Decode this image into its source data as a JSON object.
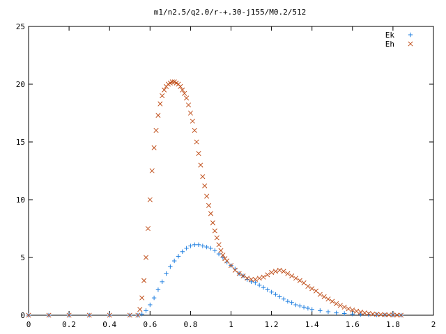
{
  "chart_data": {
    "type": "scatter",
    "title": "m1/n2.5/q2.0/r-+.30-j155/M0.2/512",
    "xlabel": "",
    "ylabel": "",
    "xlim": [
      0,
      2
    ],
    "ylim": [
      0,
      25
    ],
    "x_ticks": [
      "0",
      "0.2",
      "0.4",
      "0.6",
      "0.8",
      "1",
      "1.2",
      "1.4",
      "1.6",
      "1.8",
      "2"
    ],
    "y_ticks": [
      "0",
      "5",
      "10",
      "15",
      "20",
      "25"
    ],
    "grid": false,
    "legend_position": "top-right",
    "series": [
      {
        "name": "Ek",
        "marker": "plus",
        "color": "#1f7fe0",
        "x": [
          0.0,
          0.1,
          0.2,
          0.3,
          0.4,
          0.5,
          0.54,
          0.56,
          0.58,
          0.6,
          0.62,
          0.64,
          0.66,
          0.68,
          0.7,
          0.72,
          0.74,
          0.76,
          0.78,
          0.8,
          0.82,
          0.84,
          0.86,
          0.88,
          0.9,
          0.92,
          0.94,
          0.96,
          0.98,
          1.0,
          1.02,
          1.04,
          1.06,
          1.08,
          1.1,
          1.12,
          1.14,
          1.16,
          1.18,
          1.2,
          1.22,
          1.24,
          1.26,
          1.28,
          1.3,
          1.32,
          1.34,
          1.36,
          1.38,
          1.4,
          1.44,
          1.48,
          1.52,
          1.56,
          1.6,
          1.64,
          1.68,
          1.72,
          1.76,
          1.8,
          1.84
        ],
        "y": [
          0,
          0,
          0,
          0,
          0,
          0,
          0,
          0.1,
          0.4,
          0.9,
          1.5,
          2.2,
          2.9,
          3.6,
          4.2,
          4.7,
          5.1,
          5.5,
          5.8,
          6.0,
          6.1,
          6.1,
          6.0,
          5.9,
          5.8,
          5.6,
          5.3,
          5.0,
          4.6,
          4.3,
          4.0,
          3.6,
          3.4,
          3.1,
          2.9,
          2.8,
          2.6,
          2.4,
          2.2,
          2.0,
          1.8,
          1.6,
          1.4,
          1.2,
          1.1,
          0.9,
          0.8,
          0.7,
          0.6,
          0.5,
          0.4,
          0.3,
          0.2,
          0.15,
          0.1,
          0.07,
          0.05,
          0.03,
          0.02,
          0.01,
          0
        ]
      },
      {
        "name": "Eh",
        "marker": "cross",
        "color": "#c0501c",
        "x": [
          0.0,
          0.1,
          0.2,
          0.3,
          0.4,
          0.5,
          0.54,
          0.55,
          0.56,
          0.57,
          0.58,
          0.59,
          0.6,
          0.61,
          0.62,
          0.63,
          0.64,
          0.65,
          0.66,
          0.67,
          0.68,
          0.69,
          0.7,
          0.71,
          0.72,
          0.73,
          0.74,
          0.75,
          0.76,
          0.77,
          0.78,
          0.79,
          0.8,
          0.81,
          0.82,
          0.83,
          0.84,
          0.85,
          0.86,
          0.87,
          0.88,
          0.89,
          0.9,
          0.91,
          0.92,
          0.93,
          0.94,
          0.95,
          0.96,
          0.97,
          0.98,
          1.0,
          1.02,
          1.04,
          1.06,
          1.08,
          1.1,
          1.12,
          1.14,
          1.16,
          1.18,
          1.2,
          1.22,
          1.24,
          1.26,
          1.28,
          1.3,
          1.32,
          1.34,
          1.36,
          1.38,
          1.4,
          1.42,
          1.44,
          1.46,
          1.48,
          1.5,
          1.52,
          1.54,
          1.56,
          1.58,
          1.6,
          1.62,
          1.64,
          1.66,
          1.68,
          1.7,
          1.72,
          1.74,
          1.76,
          1.78,
          1.8,
          1.82,
          1.84
        ],
        "y": [
          0,
          0,
          0,
          0,
          0,
          0,
          0,
          0.5,
          1.5,
          3.0,
          5.0,
          7.5,
          10.0,
          12.5,
          14.5,
          16.0,
          17.3,
          18.3,
          19.0,
          19.5,
          19.8,
          20.0,
          20.1,
          20.2,
          20.2,
          20.1,
          20.0,
          19.8,
          19.5,
          19.2,
          18.8,
          18.2,
          17.5,
          16.8,
          16.0,
          15.0,
          14.0,
          13.0,
          12.0,
          11.2,
          10.3,
          9.5,
          8.8,
          8.0,
          7.3,
          6.7,
          6.1,
          5.6,
          5.2,
          4.9,
          4.7,
          4.3,
          3.9,
          3.6,
          3.4,
          3.2,
          3.1,
          3.1,
          3.2,
          3.3,
          3.5,
          3.7,
          3.8,
          3.9,
          3.8,
          3.6,
          3.4,
          3.2,
          3.0,
          2.8,
          2.5,
          2.3,
          2.1,
          1.8,
          1.6,
          1.4,
          1.2,
          1.0,
          0.85,
          0.7,
          0.55,
          0.45,
          0.35,
          0.27,
          0.2,
          0.15,
          0.11,
          0.08,
          0.06,
          0.04,
          0.03,
          0.02,
          0.01,
          0
        ]
      }
    ]
  }
}
